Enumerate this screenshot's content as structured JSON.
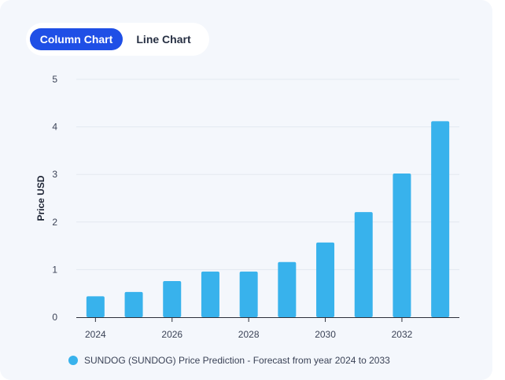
{
  "toggle": {
    "column_label": "Column Chart",
    "line_label": "Line Chart"
  },
  "colors": {
    "bar": "#38b2ec",
    "accent": "#1f4fe6"
  },
  "chart_data": {
    "type": "bar",
    "ylabel": "Price USD",
    "ylim": [
      0,
      5
    ],
    "yticks": [
      0,
      1,
      2,
      3,
      4,
      5
    ],
    "grid": true,
    "legend_position": "bottom",
    "categories": [
      "2024",
      "2025",
      "2026",
      "2027",
      "2028",
      "2029",
      "2030",
      "2031",
      "2032",
      "2033"
    ],
    "x_tick_labels": [
      "2024",
      "2026",
      "2028",
      "2030",
      "2032"
    ],
    "series": [
      {
        "name": "SUNDOG (SUNDOG) Price Prediction - Forecast from year 2024 to 2033",
        "values": [
          0.44,
          0.53,
          0.76,
          0.96,
          0.96,
          1.16,
          1.57,
          2.21,
          3.02,
          4.12
        ]
      }
    ]
  }
}
